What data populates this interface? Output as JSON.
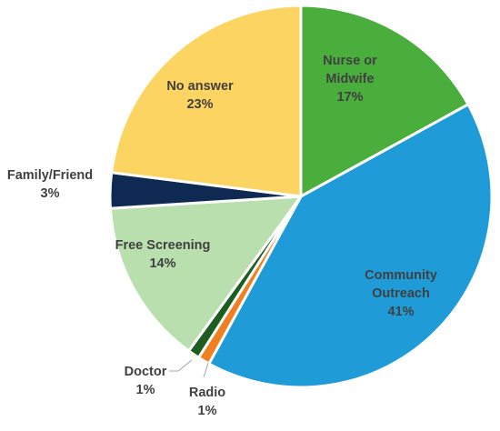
{
  "chart_data": {
    "type": "pie",
    "title": "",
    "legend": "none",
    "start_angle_deg": 0,
    "direction": "clockwise",
    "slices": [
      {
        "name": "Nurse or Midwife",
        "label_lines": [
          "Nurse or",
          "Midwife"
        ],
        "value": 17,
        "value_label": "17%",
        "color": "#4aae3c"
      },
      {
        "name": "Community Outreach",
        "label_lines": [
          "Community",
          "Outreach"
        ],
        "value": 41,
        "value_label": "41%",
        "color": "#1f9bd7"
      },
      {
        "name": "Radio",
        "label_lines": [
          "Radio"
        ],
        "value": 1,
        "value_label": "1%",
        "color": "#f07f22"
      },
      {
        "name": "Doctor",
        "label_lines": [
          "Doctor"
        ],
        "value": 1,
        "value_label": "1%",
        "color": "#1d5e20"
      },
      {
        "name": "Free Screening",
        "label_lines": [
          "Free Screening"
        ],
        "value": 14,
        "value_label": "14%",
        "color": "#b9dfae"
      },
      {
        "name": "Family/Friend",
        "label_lines": [
          "Family/Friend"
        ],
        "value": 3,
        "value_label": "3%",
        "color": "#0e2a52"
      },
      {
        "name": "No answer",
        "label_lines": [
          "No answer"
        ],
        "value": 23,
        "value_label": "23%",
        "color": "#fbd461"
      }
    ]
  }
}
